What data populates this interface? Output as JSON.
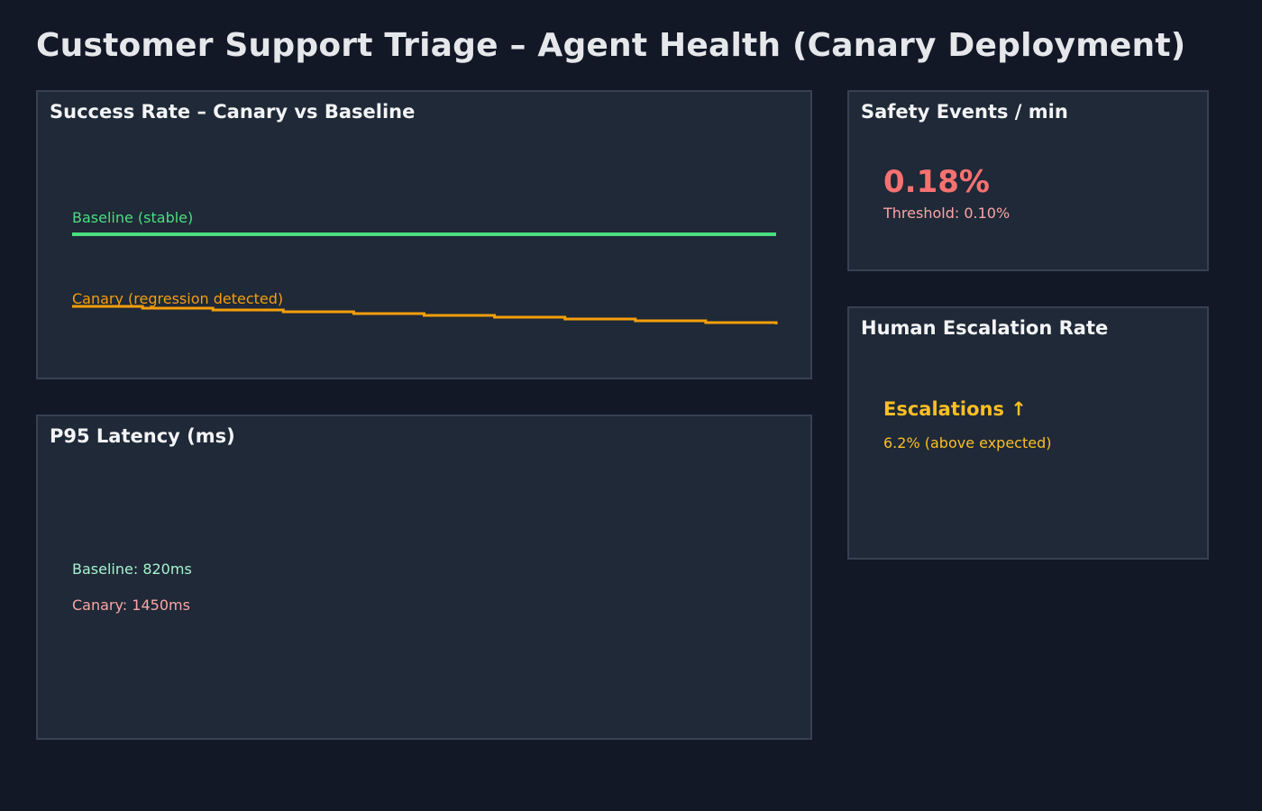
{
  "page": {
    "title": "Customer Support Triage – Agent Health (Canary Deployment)"
  },
  "success_panel": {
    "title": "Success Rate – Canary vs Baseline",
    "baseline_label": "Baseline (stable)",
    "canary_label": "Canary (regression detected)"
  },
  "latency_panel": {
    "title": "P95 Latency (ms)",
    "baseline_text": "Baseline: 820ms",
    "canary_text": "Canary: 1450ms"
  },
  "safety_panel": {
    "title": "Safety Events / min",
    "value": "0.18%",
    "threshold": "Threshold: 0.10%"
  },
  "escalation_panel": {
    "title": "Human Escalation Rate",
    "headline": "Escalations ↑",
    "detail": "6.2% (above expected)"
  },
  "chart_data": {
    "type": "line",
    "title": "Success Rate – Canary vs Baseline",
    "xlabel": "",
    "ylabel": "",
    "grid": false,
    "series": [
      {
        "name": "Baseline (stable)",
        "color": "#4ade80",
        "values": [
          100,
          100,
          100,
          100,
          100,
          100,
          100,
          100,
          100,
          100,
          100
        ]
      },
      {
        "name": "Canary (regression detected)",
        "color": "#f59e0b",
        "values": [
          60,
          59,
          58,
          57,
          56,
          55,
          54,
          53,
          52,
          51,
          50
        ]
      }
    ],
    "ylim": [
      0,
      100
    ]
  },
  "colors": {
    "background": "#121826",
    "panel": "#1f2937",
    "panel_border": "#374151",
    "baseline": "#4ade80",
    "canary": "#f59e0b",
    "alert": "#f87171",
    "warning": "#fbbf24"
  }
}
